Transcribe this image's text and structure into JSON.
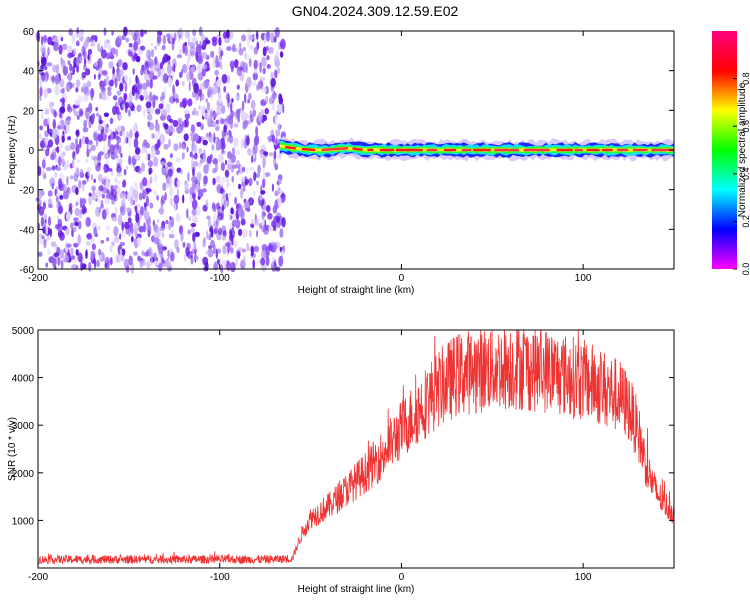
{
  "title": "GN04.2024.309.12.59.E02",
  "colors": {
    "snr_line": "#ee3333",
    "noise_purple": "#7a2cf0",
    "noise_light": "#c8b0f6",
    "colormap": [
      "#ff00ff",
      "#0000ff",
      "#00ffff",
      "#00ff00",
      "#ffff00",
      "#ff0000",
      "#ff0080"
    ]
  },
  "chart_data": [
    {
      "type": "heatmap",
      "xlabel": "Height of straight line (km)",
      "ylabel": "Frequency (Hz)",
      "xlim": [
        -200,
        150
      ],
      "ylim": [
        -60,
        60
      ],
      "x_ticks": [
        -200,
        -100,
        0,
        100
      ],
      "y_ticks": [
        -60,
        -40,
        -20,
        0,
        20,
        40,
        60
      ],
      "x_tick_labels": [
        "-200",
        "-100",
        "0",
        "100"
      ],
      "y_tick_labels": [
        "-60",
        "-40",
        "-20",
        "0",
        "20",
        "40",
        "60"
      ],
      "colorbar": {
        "label": "Normalized spectral amplitude",
        "range": [
          0,
          1
        ],
        "ticks": [
          0,
          0.2,
          0.4,
          0.6,
          0.8
        ],
        "tick_labels": [
          "0.0",
          "0.2",
          "0.4",
          "0.6",
          "0.8"
        ]
      },
      "noise_region_x": [
        -200,
        -67
      ],
      "carrier_x": [
        -67,
        150
      ],
      "carrier_frequency": [
        [
          -67,
          2
        ],
        [
          -60,
          1
        ],
        [
          -50,
          0
        ],
        [
          -40,
          0
        ],
        [
          -30,
          1
        ],
        [
          -20,
          0
        ],
        [
          -10,
          0
        ],
        [
          0,
          0
        ],
        [
          20,
          0
        ],
        [
          40,
          0
        ],
        [
          60,
          0
        ],
        [
          80,
          0
        ],
        [
          100,
          0
        ],
        [
          120,
          0
        ],
        [
          150,
          0
        ]
      ],
      "grid": false
    },
    {
      "type": "line",
      "xlabel": "Height of straight line (km)",
      "ylabel": "SNR (10 * v/v)",
      "xlim": [
        -200,
        150
      ],
      "ylim": [
        0,
        5000
      ],
      "x_ticks": [
        -200,
        -100,
        0,
        100
      ],
      "y_ticks": [
        1000,
        2000,
        3000,
        4000,
        5000
      ],
      "x_tick_labels": [
        "-200",
        "-100",
        "0",
        "100"
      ],
      "y_tick_labels": [
        "1000",
        "2000",
        "3000",
        "4000",
        "5000"
      ],
      "series": [
        {
          "color": "#ee3333",
          "x": [
            -200,
            -150,
            -100,
            -70,
            -60,
            -55,
            -50,
            -40,
            -30,
            -20,
            -10,
            0,
            10,
            20,
            30,
            40,
            50,
            60,
            70,
            80,
            90,
            100,
            110,
            120,
            125,
            130,
            135,
            140,
            145,
            150
          ],
          "y": [
            180,
            180,
            180,
            180,
            200,
            700,
            1050,
            1300,
            1650,
            2000,
            2400,
            2900,
            3350,
            3750,
            4050,
            4150,
            4200,
            4250,
            4200,
            4150,
            4050,
            3950,
            3800,
            3600,
            3400,
            2900,
            2100,
            1600,
            1350,
            1150
          ]
        }
      ],
      "grid": false
    }
  ]
}
